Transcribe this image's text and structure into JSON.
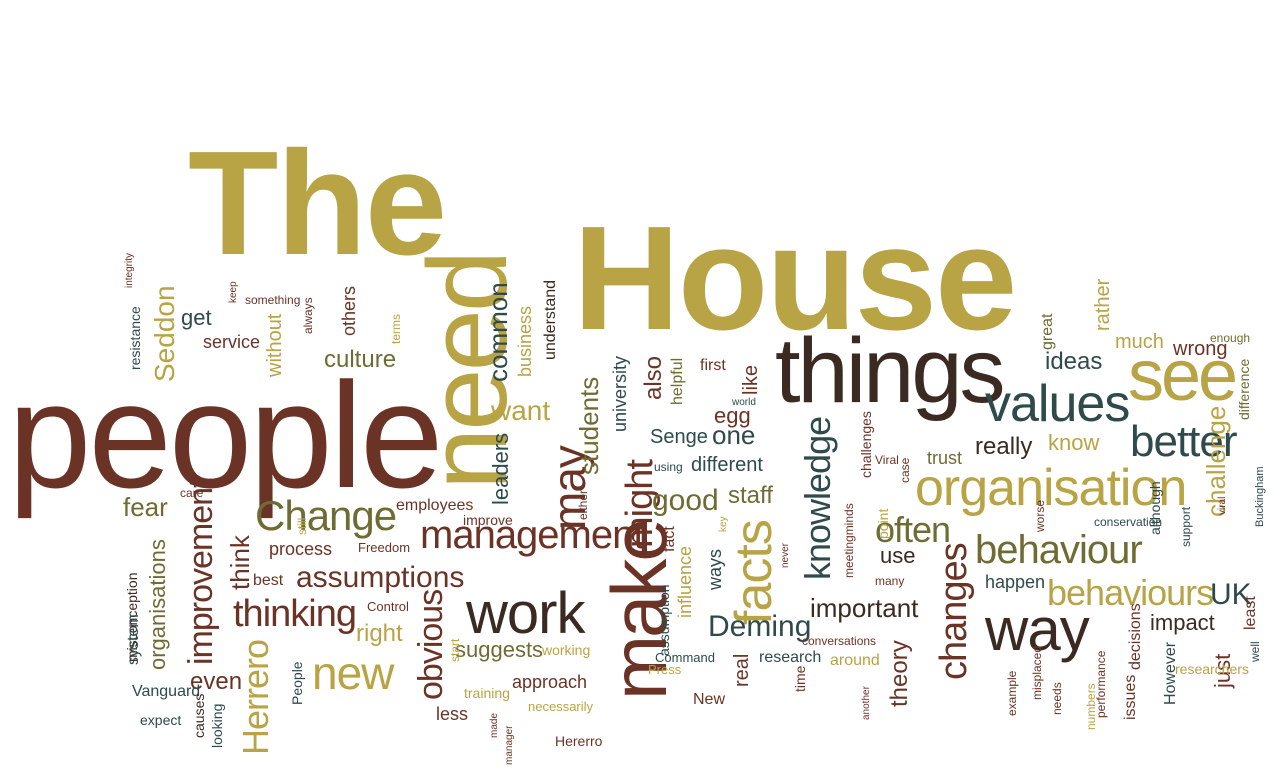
{
  "title": {
    "line1": "The",
    "line2": "House"
  },
  "palette": {
    "brown": "#6b3326",
    "gold": "#b8a445",
    "olive": "#6e6c33",
    "teal": "#2f4a4a",
    "dark": "#3b2a22"
  },
  "words": [
    {
      "t": "people",
      "c": "brown"
    },
    {
      "t": "need",
      "c": "gold"
    },
    {
      "t": "things",
      "c": "dark"
    },
    {
      "t": "see",
      "c": "gold"
    },
    {
      "t": "values",
      "c": "teal"
    },
    {
      "t": "better",
      "c": "teal"
    },
    {
      "t": "organisation",
      "c": "gold"
    },
    {
      "t": "make",
      "c": "brown"
    },
    {
      "t": "facts",
      "c": "gold"
    },
    {
      "t": "management",
      "c": "brown"
    },
    {
      "t": "work",
      "c": "dark"
    },
    {
      "t": "way",
      "c": "dark"
    },
    {
      "t": "behaviour",
      "c": "olive"
    },
    {
      "t": "behaviours",
      "c": "gold"
    },
    {
      "t": "Change",
      "c": "olive"
    },
    {
      "t": "new",
      "c": "gold"
    },
    {
      "t": "thinking",
      "c": "brown"
    },
    {
      "t": "assumptions",
      "c": "brown"
    },
    {
      "t": "knowledge",
      "c": "teal"
    },
    {
      "t": "changes",
      "c": "brown"
    },
    {
      "t": "often",
      "c": "olive"
    },
    {
      "t": "Deming",
      "c": "teal"
    },
    {
      "t": "important",
      "c": "dark"
    },
    {
      "t": "UK",
      "c": "teal"
    },
    {
      "t": "may",
      "c": "brown"
    },
    {
      "t": "might",
      "c": "brown"
    },
    {
      "t": "Herrero",
      "c": "gold"
    },
    {
      "t": "improvement",
      "c": "brown"
    },
    {
      "t": "obvious",
      "c": "brown"
    },
    {
      "t": "good",
      "c": "olive"
    },
    {
      "t": "one",
      "c": "teal"
    },
    {
      "t": "staff",
      "c": "olive"
    },
    {
      "t": "culture",
      "c": "olive"
    },
    {
      "t": "Seddon",
      "c": "gold"
    },
    {
      "t": "common",
      "c": "teal"
    },
    {
      "t": "want",
      "c": "gold"
    },
    {
      "t": "students",
      "c": "olive"
    },
    {
      "t": "leaders",
      "c": "teal"
    },
    {
      "t": "fear",
      "c": "olive"
    },
    {
      "t": "think",
      "c": "brown"
    },
    {
      "t": "even",
      "c": "brown"
    },
    {
      "t": "right",
      "c": "gold"
    },
    {
      "t": "suggests",
      "c": "olive"
    },
    {
      "t": "real",
      "c": "brown"
    },
    {
      "t": "theory",
      "c": "brown"
    },
    {
      "t": "use",
      "c": "dark"
    },
    {
      "t": "really",
      "c": "dark"
    },
    {
      "t": "know",
      "c": "gold"
    },
    {
      "t": "ideas",
      "c": "teal"
    },
    {
      "t": "much",
      "c": "gold"
    },
    {
      "t": "rather",
      "c": "gold"
    },
    {
      "t": "challenge",
      "c": "gold"
    },
    {
      "t": "impact",
      "c": "dark"
    },
    {
      "t": "just",
      "c": "brown"
    },
    {
      "t": "happen",
      "c": "teal"
    },
    {
      "t": "different",
      "c": "teal"
    },
    {
      "t": "Senge",
      "c": "teal"
    },
    {
      "t": "also",
      "c": "brown"
    },
    {
      "t": "egg",
      "c": "brown"
    },
    {
      "t": "like",
      "c": "brown"
    },
    {
      "t": "first",
      "c": "brown"
    },
    {
      "t": "helpful",
      "c": "olive"
    },
    {
      "t": "university",
      "c": "teal"
    },
    {
      "t": "get",
      "c": "teal"
    },
    {
      "t": "service",
      "c": "brown"
    },
    {
      "t": "without",
      "c": "gold"
    },
    {
      "t": "others",
      "c": "brown"
    },
    {
      "t": "business",
      "c": "gold"
    },
    {
      "t": "understand",
      "c": "dark"
    },
    {
      "t": "process",
      "c": "brown"
    },
    {
      "t": "employees",
      "c": "brown"
    },
    {
      "t": "best",
      "c": "brown"
    },
    {
      "t": "organisations",
      "c": "olive"
    },
    {
      "t": "approach",
      "c": "brown"
    },
    {
      "t": "less",
      "c": "brown"
    },
    {
      "t": "influence",
      "c": "gold"
    },
    {
      "t": "ways",
      "c": "teal"
    },
    {
      "t": "research",
      "c": "teal"
    },
    {
      "t": "around",
      "c": "gold"
    },
    {
      "t": "wrong",
      "c": "brown"
    },
    {
      "t": "trust",
      "c": "olive"
    },
    {
      "t": "great",
      "c": "olive"
    },
    {
      "t": "enough",
      "c": "olive"
    },
    {
      "t": "difference",
      "c": "olive"
    },
    {
      "t": "resistance",
      "c": "teal"
    },
    {
      "t": "integrity",
      "c": "brown"
    },
    {
      "t": "keep",
      "c": "brown"
    },
    {
      "t": "something",
      "c": "brown"
    },
    {
      "t": "always",
      "c": "brown"
    },
    {
      "t": "terms",
      "c": "gold"
    },
    {
      "t": "care",
      "c": "brown"
    },
    {
      "t": "misconception",
      "c": "dark"
    },
    {
      "t": "system",
      "c": "teal"
    },
    {
      "t": "Vanguard",
      "c": "teal"
    },
    {
      "t": "expect",
      "c": "teal"
    },
    {
      "t": "causes",
      "c": "dark"
    },
    {
      "t": "looking",
      "c": "teal"
    },
    {
      "t": "People",
      "c": "teal"
    },
    {
      "t": "still",
      "c": "gold"
    },
    {
      "t": "Freedom",
      "c": "brown"
    },
    {
      "t": "Control",
      "c": "brown"
    },
    {
      "t": "improve",
      "c": "brown"
    },
    {
      "t": "start",
      "c": "gold"
    },
    {
      "t": "working",
      "c": "gold"
    },
    {
      "t": "training",
      "c": "gold"
    },
    {
      "t": "necessarily",
      "c": "gold"
    },
    {
      "t": "Hererro",
      "c": "brown"
    },
    {
      "t": "made",
      "c": "brown"
    },
    {
      "t": "manager",
      "c": "brown"
    },
    {
      "t": "either",
      "c": "brown"
    },
    {
      "t": "fact",
      "c": "brown"
    },
    {
      "t": "assumption",
      "c": "teal"
    },
    {
      "t": "using",
      "c": "teal"
    },
    {
      "t": "Command",
      "c": "teal"
    },
    {
      "t": "Press",
      "c": "gold"
    },
    {
      "t": "New",
      "c": "brown"
    },
    {
      "t": "key",
      "c": "gold"
    },
    {
      "t": "never",
      "c": "brown"
    },
    {
      "t": "time",
      "c": "brown"
    },
    {
      "t": "world",
      "c": "teal"
    },
    {
      "t": "meetingminds",
      "c": "brown"
    },
    {
      "t": "challenges",
      "c": "brown"
    },
    {
      "t": "point",
      "c": "gold"
    },
    {
      "t": "Viral",
      "c": "brown"
    },
    {
      "t": "case",
      "c": "brown"
    },
    {
      "t": "many",
      "c": "brown"
    },
    {
      "t": "conversations",
      "c": "brown"
    },
    {
      "t": "another",
      "c": "brown"
    },
    {
      "t": "conservation",
      "c": "teal"
    },
    {
      "t": "worse",
      "c": "brown"
    },
    {
      "t": "viral",
      "c": "brown"
    },
    {
      "t": "support",
      "c": "teal"
    },
    {
      "t": "although",
      "c": "teal"
    },
    {
      "t": "example",
      "c": "brown"
    },
    {
      "t": "misplaced",
      "c": "brown"
    },
    {
      "t": "needs",
      "c": "brown"
    },
    {
      "t": "numbers",
      "c": "gold"
    },
    {
      "t": "performance",
      "c": "brown"
    },
    {
      "t": "issues",
      "c": "brown"
    },
    {
      "t": "decisions",
      "c": "brown"
    },
    {
      "t": "However",
      "c": "teal"
    },
    {
      "t": "researchers",
      "c": "gold"
    },
    {
      "t": "least",
      "c": "brown"
    },
    {
      "t": "well",
      "c": "teal"
    },
    {
      "t": "Buckingham",
      "c": "teal"
    }
  ]
}
